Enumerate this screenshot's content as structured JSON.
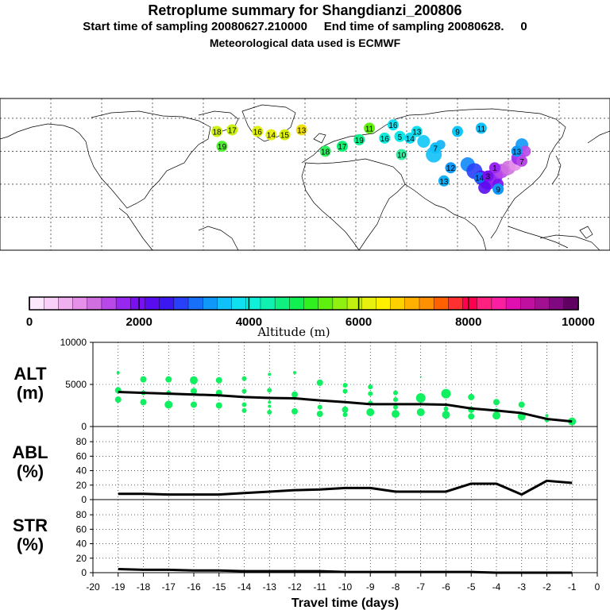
{
  "header": {
    "title": "Retroplume summary for Shangdianzi_200806",
    "sampling": "Start time of sampling 20080627.210000     End time of sampling 20080628.     0",
    "met": "Meteorological data used is ECMWF"
  },
  "colorbar": {
    "label": "Altitude (m)",
    "ticks": [
      "0",
      "2000",
      "4000",
      "6000",
      "8000",
      "10000"
    ],
    "colors": [
      "#fce8fc",
      "#f8d0f8",
      "#f0b0f0",
      "#e690ea",
      "#d070e0",
      "#b848e8",
      "#9828f0",
      "#7810f0",
      "#5a0cf0",
      "#3c18f0",
      "#2840f8",
      "#1870f8",
      "#1098f8",
      "#10c0f8",
      "#10e0f0",
      "#10f0d8",
      "#10f0b0",
      "#10f080",
      "#10f050",
      "#30f020",
      "#60f010",
      "#90f010",
      "#c0f010",
      "#e8f010",
      "#fff000",
      "#ffd000",
      "#ffb000",
      "#ff9000",
      "#ff6000",
      "#ff3030",
      "#ff0050",
      "#ff2080",
      "#f820a0",
      "#e010b0",
      "#c010a0",
      "#a01090",
      "#800880",
      "#600060"
    ]
  },
  "chart_data": [
    {
      "type": "line",
      "panel": "ALT",
      "ylabel": "ALT\n(m)",
      "ylim": [
        0,
        10000
      ],
      "yticks": [
        "0",
        "5000",
        "10000"
      ],
      "x": [
        -19,
        -18,
        -17,
        -16,
        -15,
        -14,
        -13,
        -12,
        -11,
        -10,
        -9,
        -8,
        -7,
        -6,
        -5,
        -4,
        -3,
        -2,
        -1
      ],
      "series": [
        {
          "name": "mean altitude",
          "values": [
            4100,
            4000,
            3900,
            3800,
            3700,
            3500,
            3400,
            3350,
            3100,
            2900,
            2650,
            2650,
            2650,
            2600,
            2150,
            1900,
            1600,
            900,
            600
          ]
        }
      ],
      "scatter_color": "#10f060",
      "scatter": [
        {
          "x": -19,
          "y": 6400,
          "s": 2
        },
        {
          "x": -19,
          "y": 4300,
          "s": 4
        },
        {
          "x": -19,
          "y": 3200,
          "s": 4
        },
        {
          "x": -18,
          "y": 5600,
          "s": 4
        },
        {
          "x": -18,
          "y": 4000,
          "s": 3
        },
        {
          "x": -18,
          "y": 2900,
          "s": 4
        },
        {
          "x": -17,
          "y": 5600,
          "s": 4
        },
        {
          "x": -17,
          "y": 4000,
          "s": 3
        },
        {
          "x": -17,
          "y": 2600,
          "s": 5
        },
        {
          "x": -16,
          "y": 5500,
          "s": 5
        },
        {
          "x": -16,
          "y": 4200,
          "s": 4
        },
        {
          "x": -16,
          "y": 2600,
          "s": 4
        },
        {
          "x": -15,
          "y": 5500,
          "s": 4
        },
        {
          "x": -15,
          "y": 4000,
          "s": 4
        },
        {
          "x": -15,
          "y": 2500,
          "s": 4
        },
        {
          "x": -14,
          "y": 5700,
          "s": 3
        },
        {
          "x": -14,
          "y": 4200,
          "s": 3
        },
        {
          "x": -14,
          "y": 2600,
          "s": 3
        },
        {
          "x": -14,
          "y": 1900,
          "s": 3
        },
        {
          "x": -13,
          "y": 6200,
          "s": 2
        },
        {
          "x": -13,
          "y": 4300,
          "s": 3
        },
        {
          "x": -13,
          "y": 2900,
          "s": 2
        },
        {
          "x": -13,
          "y": 2400,
          "s": 2
        },
        {
          "x": -13,
          "y": 1700,
          "s": 3
        },
        {
          "x": -12,
          "y": 6400,
          "s": 2
        },
        {
          "x": -12,
          "y": 3800,
          "s": 4
        },
        {
          "x": -12,
          "y": 1800,
          "s": 4
        },
        {
          "x": -11,
          "y": 5200,
          "s": 4
        },
        {
          "x": -11,
          "y": 2300,
          "s": 3
        },
        {
          "x": -11,
          "y": 1500,
          "s": 4
        },
        {
          "x": -10,
          "y": 4900,
          "s": 3
        },
        {
          "x": -10,
          "y": 4200,
          "s": 3
        },
        {
          "x": -10,
          "y": 2000,
          "s": 4
        },
        {
          "x": -10,
          "y": 1400,
          "s": 3
        },
        {
          "x": -9,
          "y": 4700,
          "s": 3
        },
        {
          "x": -9,
          "y": 3900,
          "s": 3
        },
        {
          "x": -9,
          "y": 2800,
          "s": 3
        },
        {
          "x": -9,
          "y": 1700,
          "s": 5
        },
        {
          "x": -8,
          "y": 4000,
          "s": 3
        },
        {
          "x": -8,
          "y": 3200,
          "s": 3
        },
        {
          "x": -8,
          "y": 2300,
          "s": 3
        },
        {
          "x": -8,
          "y": 1500,
          "s": 5
        },
        {
          "x": -7,
          "y": 5900,
          "s": 1
        },
        {
          "x": -7,
          "y": 3400,
          "s": 6
        },
        {
          "x": -7,
          "y": 1700,
          "s": 5
        },
        {
          "x": -6,
          "y": 3900,
          "s": 6
        },
        {
          "x": -6,
          "y": 2100,
          "s": 3
        },
        {
          "x": -6,
          "y": 1400,
          "s": 5
        },
        {
          "x": -5,
          "y": 3500,
          "s": 4
        },
        {
          "x": -5,
          "y": 2000,
          "s": 4
        },
        {
          "x": -5,
          "y": 1200,
          "s": 4
        },
        {
          "x": -4,
          "y": 2900,
          "s": 4
        },
        {
          "x": -4,
          "y": 1900,
          "s": 3
        },
        {
          "x": -4,
          "y": 1300,
          "s": 5
        },
        {
          "x": -3,
          "y": 2600,
          "s": 4
        },
        {
          "x": -3,
          "y": 1200,
          "s": 5
        },
        {
          "x": -2,
          "y": 1300,
          "s": 2
        },
        {
          "x": -2,
          "y": 800,
          "s": 3
        },
        {
          "x": -1,
          "y": 600,
          "s": 5
        }
      ]
    },
    {
      "type": "line",
      "panel": "ABL",
      "ylabel": "ABL\n(%)",
      "ylim": [
        0,
        90
      ],
      "yticks": [
        "0",
        "20",
        "40",
        "60",
        "80"
      ],
      "x": [
        -19,
        -18,
        -17,
        -16,
        -15,
        -14,
        -13,
        -12,
        -11,
        -10,
        -9,
        -8,
        -7,
        -6,
        -5,
        -4,
        -3,
        -2,
        -1
      ],
      "series": [
        {
          "name": "ABL fraction",
          "values": [
            8,
            8,
            7,
            7,
            7,
            9,
            11,
            13,
            14,
            16,
            16,
            11,
            11,
            11,
            22,
            22,
            7,
            26,
            23
          ]
        }
      ]
    },
    {
      "type": "line",
      "panel": "STR",
      "ylabel": "STR\n(%)",
      "ylim": [
        0,
        90
      ],
      "yticks": [
        "0",
        "20",
        "40",
        "60",
        "80"
      ],
      "x": [
        -19,
        -18,
        -17,
        -16,
        -15,
        -14,
        -13,
        -12,
        -11,
        -10,
        -9,
        -8,
        -7,
        -6,
        -5,
        -4,
        -3,
        -2,
        -1
      ],
      "xlabel": "Travel time (days)",
      "xticks": [
        "-20",
        "-19",
        "-18",
        "-17",
        "-16",
        "-15",
        "-14",
        "-13",
        "-12",
        "-11",
        "-10",
        "-9",
        "-8",
        "-7",
        "-6",
        "-5",
        "-4",
        "-3",
        "-2",
        "-1",
        "0"
      ],
      "series": [
        {
          "name": "stratosphere fraction",
          "values": [
            5,
            4,
            4,
            3,
            3,
            2,
            2,
            2,
            2,
            1,
            1,
            1,
            1,
            1,
            1,
            0,
            0,
            0,
            0
          ]
        }
      ]
    }
  ],
  "map": {
    "plume_labels": [
      {
        "text": "18",
        "lon": -52,
        "lat": 52,
        "c": "#d0f010"
      },
      {
        "text": "17",
        "lon": -43,
        "lat": 53,
        "c": "#c8f010"
      },
      {
        "text": "19",
        "lon": -49,
        "lat": 43,
        "c": "#50f030"
      },
      {
        "text": "16",
        "lon": -28,
        "lat": 52,
        "c": "#e0f010"
      },
      {
        "text": "14",
        "lon": -20,
        "lat": 50,
        "c": "#e8f010"
      },
      {
        "text": "15",
        "lon": -12,
        "lat": 50,
        "c": "#d8f010"
      },
      {
        "text": "13",
        "lon": -2,
        "lat": 53,
        "c": "#f0e010"
      },
      {
        "text": "18",
        "lon": 12,
        "lat": 40,
        "c": "#30f060"
      },
      {
        "text": "17",
        "lon": 22,
        "lat": 43,
        "c": "#10f070"
      },
      {
        "text": "19",
        "lon": 32,
        "lat": 47,
        "c": "#10f090"
      },
      {
        "text": "11",
        "lon": 38,
        "lat": 54,
        "c": "#60f010"
      },
      {
        "text": "16",
        "lon": 47,
        "lat": 48,
        "c": "#10e8d8"
      },
      {
        "text": "16",
        "lon": 52,
        "lat": 56,
        "c": "#10e0f0"
      },
      {
        "text": "5",
        "lon": 56,
        "lat": 49,
        "c": "#10e8e8"
      },
      {
        "text": "14",
        "lon": 62,
        "lat": 48,
        "c": "#10d8f0"
      },
      {
        "text": "13",
        "lon": 66,
        "lat": 52,
        "c": "#10e0f0"
      },
      {
        "text": "10",
        "lon": 57,
        "lat": 38,
        "c": "#30f0a0"
      },
      {
        "text": "7",
        "lon": 77,
        "lat": 42,
        "c": "#10c0f8"
      },
      {
        "text": "9",
        "lon": 90,
        "lat": 52,
        "c": "#10c8f8"
      },
      {
        "text": "11",
        "lon": 104,
        "lat": 54,
        "c": "#10c0f8"
      },
      {
        "text": "12",
        "lon": 86,
        "lat": 30,
        "c": "#1098f8"
      },
      {
        "text": "13",
        "lon": 82,
        "lat": 22,
        "c": "#10b0f8"
      },
      {
        "text": "14",
        "lon": 103,
        "lat": 24,
        "c": "#1070f8"
      },
      {
        "text": "3",
        "lon": 108,
        "lat": 25,
        "c": "#7810f0"
      },
      {
        "text": "9",
        "lon": 114,
        "lat": 17,
        "c": "#1098f8"
      },
      {
        "text": "1",
        "lon": 112,
        "lat": 30,
        "c": "#9828f0"
      },
      {
        "text": "13",
        "lon": 125,
        "lat": 40,
        "c": "#1098f8"
      },
      {
        "text": "7",
        "lon": 128,
        "lat": 34,
        "c": "#b848e8"
      }
    ],
    "plume_dots": [
      {
        "lon": 70,
        "lat": 46,
        "r": 8,
        "c": "#10c8f8"
      },
      {
        "lon": 76,
        "lat": 38,
        "r": 10,
        "c": "#10c0f8"
      },
      {
        "lon": 80,
        "lat": 44,
        "r": 6,
        "c": "#10b0f8"
      },
      {
        "lon": 96,
        "lat": 32,
        "r": 9,
        "c": "#1088f8"
      },
      {
        "lon": 100,
        "lat": 28,
        "r": 10,
        "c": "#2840f8"
      },
      {
        "lon": 104,
        "lat": 24,
        "r": 9,
        "c": "#5a0cf0"
      },
      {
        "lon": 108,
        "lat": 22,
        "r": 11,
        "c": "#7810f0"
      },
      {
        "lon": 112,
        "lat": 25,
        "r": 10,
        "c": "#9828f0"
      },
      {
        "lon": 116,
        "lat": 28,
        "r": 9,
        "c": "#b848e8"
      },
      {
        "lon": 120,
        "lat": 30,
        "r": 9,
        "c": "#d070e0"
      },
      {
        "lon": 124,
        "lat": 32,
        "r": 8,
        "c": "#e690ea"
      },
      {
        "lon": 106,
        "lat": 18,
        "r": 8,
        "c": "#5a0cf0"
      },
      {
        "lon": 114,
        "lat": 20,
        "r": 7,
        "c": "#7810f0"
      },
      {
        "lon": 128,
        "lat": 44,
        "r": 8,
        "c": "#1098f8"
      },
      {
        "lon": 126,
        "lat": 36,
        "r": 9,
        "c": "#9828f0"
      },
      {
        "lon": 130,
        "lat": 40,
        "r": 7,
        "c": "#b848e8"
      }
    ]
  }
}
